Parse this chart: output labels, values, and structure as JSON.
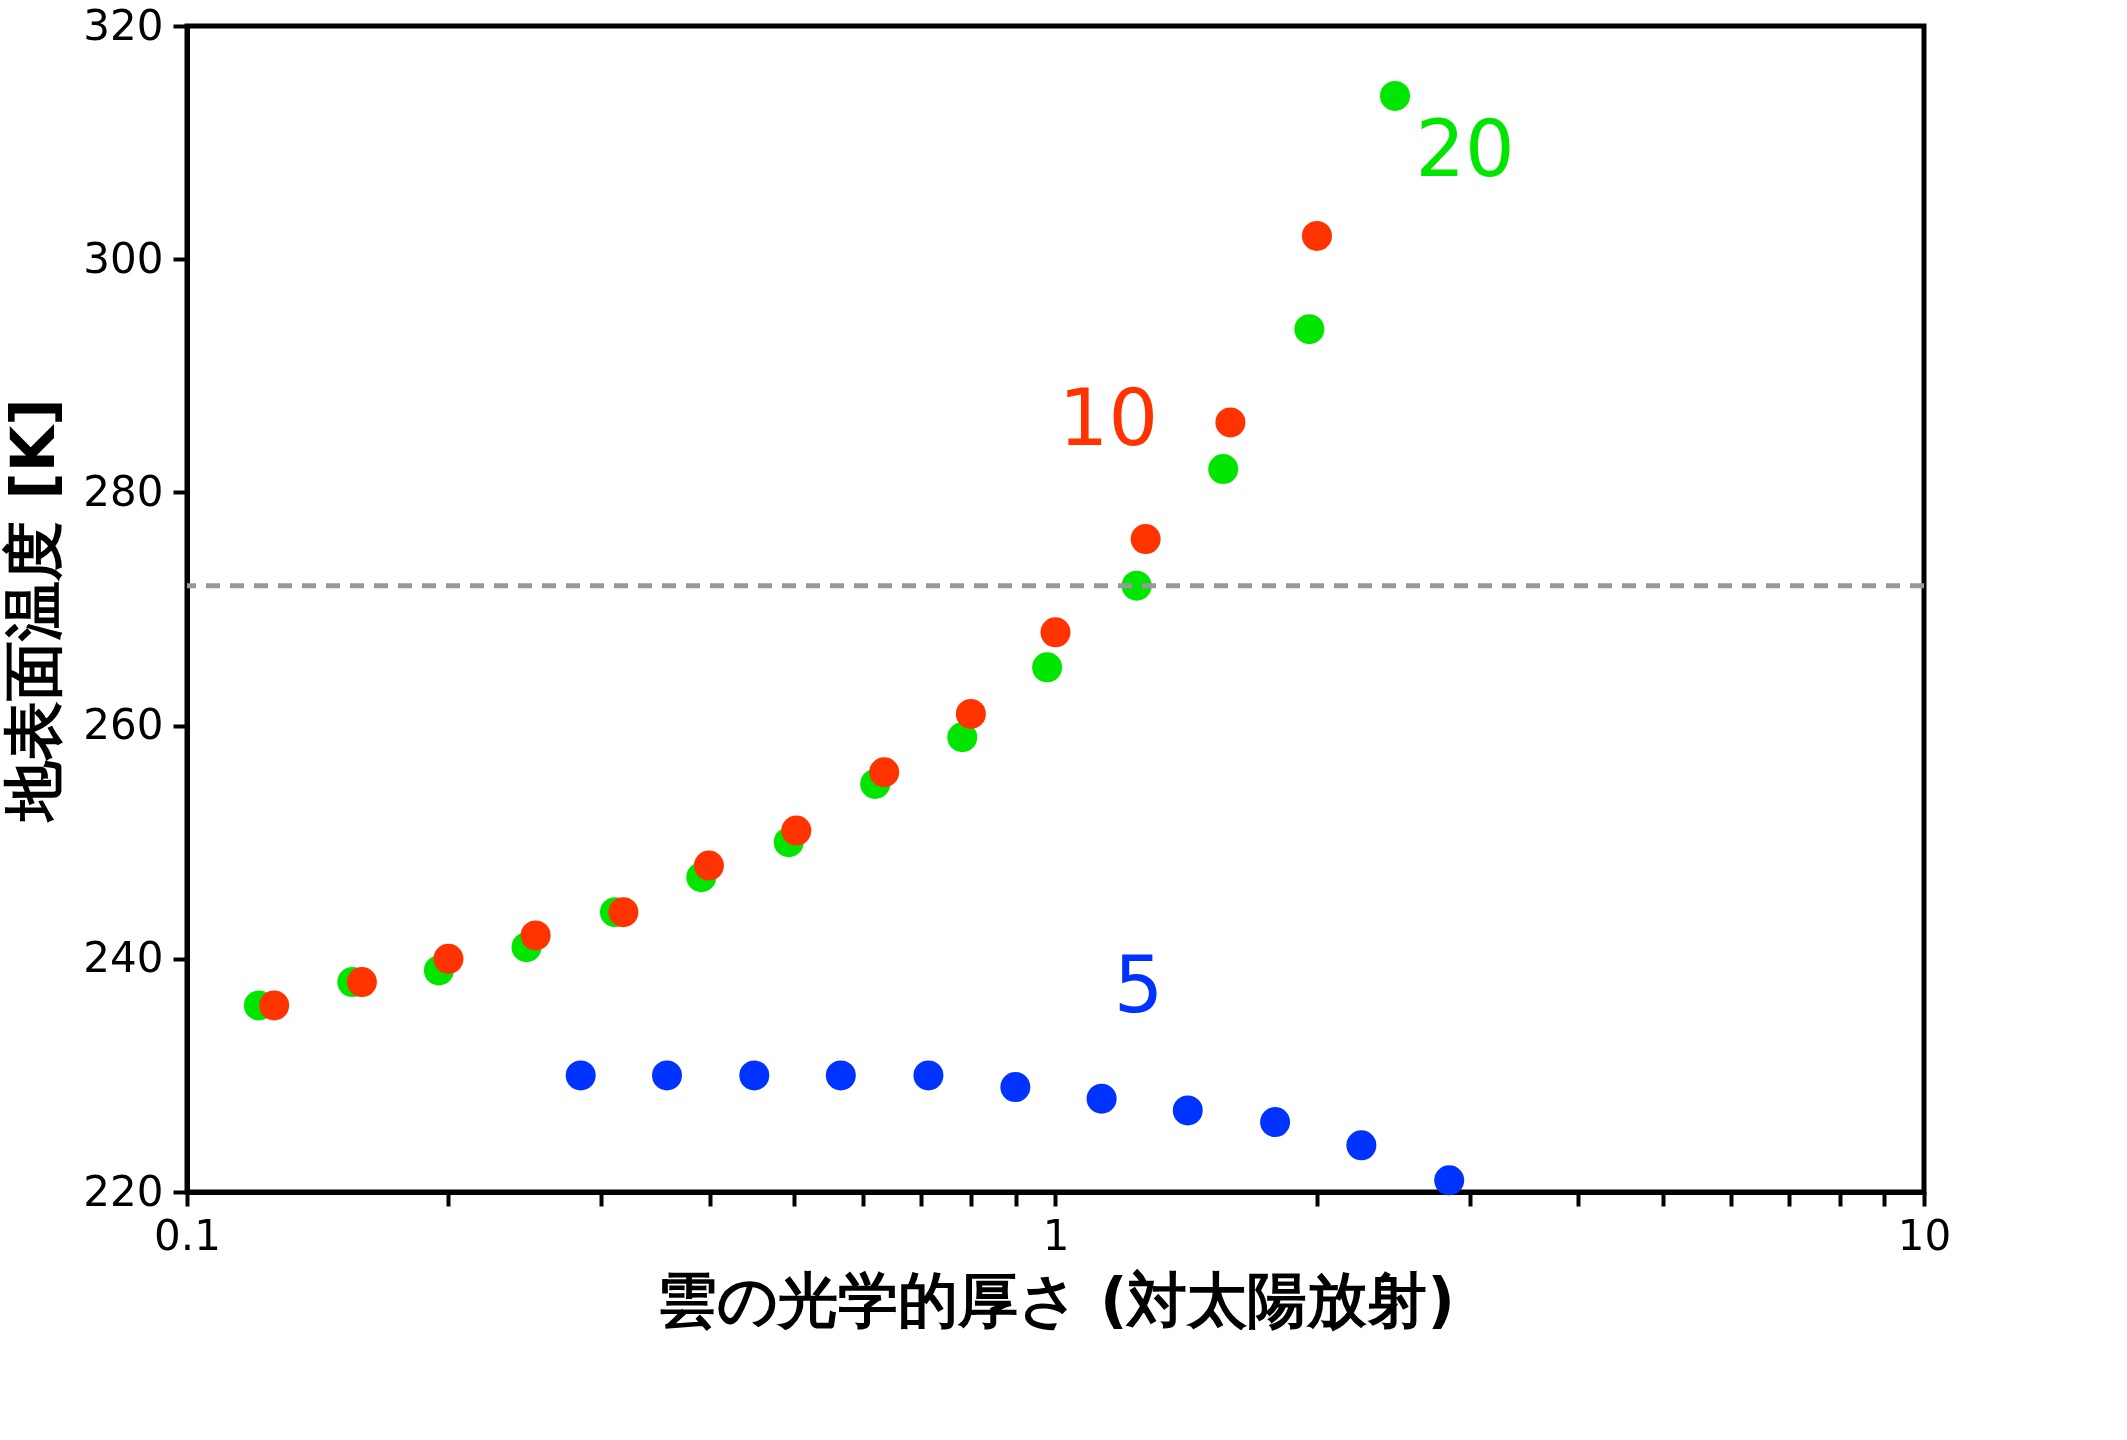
{
  "chart_data": {
    "type": "scatter",
    "xlabel": "雲の光学的厚さ (対太陽放射)",
    "ylabel": "地表面温度 [K]",
    "log": "x",
    "xlim": [
      0.1,
      10
    ],
    "ylim": [
      220,
      320
    ],
    "xticks": [
      {
        "value": 0.1,
        "label": "0.1"
      },
      {
        "value": 0.2,
        "label": null
      },
      {
        "value": 0.3,
        "label": null
      },
      {
        "value": 0.4,
        "label": null
      },
      {
        "value": 0.5,
        "label": null
      },
      {
        "value": 0.6,
        "label": null
      },
      {
        "value": 0.7,
        "label": null
      },
      {
        "value": 0.8,
        "label": null
      },
      {
        "value": 0.9,
        "label": null
      },
      {
        "value": 1,
        "label": "1"
      },
      {
        "value": 2,
        "label": null
      },
      {
        "value": 3,
        "label": null
      },
      {
        "value": 4,
        "label": null
      },
      {
        "value": 5,
        "label": null
      },
      {
        "value": 6,
        "label": null
      },
      {
        "value": 7,
        "label": null
      },
      {
        "value": 8,
        "label": null
      },
      {
        "value": 9,
        "label": null
      },
      {
        "value": 10,
        "label": "10"
      }
    ],
    "yticks": [
      220,
      240,
      260,
      280,
      300,
      320
    ],
    "grid": false,
    "marker": "circle",
    "ref_lines": [
      {
        "axis": "y",
        "value": 272,
        "color": "#999999",
        "line_style": "dashed"
      }
    ],
    "series": [
      {
        "name": "20",
        "color": "#00e600",
        "x": [
          0.121,
          0.155,
          0.195,
          0.246,
          0.311,
          0.391,
          0.493,
          0.62,
          0.781,
          0.978,
          1.24,
          1.56,
          1.96,
          2.46
        ],
        "values": [
          236,
          238,
          239,
          241,
          244,
          247,
          250,
          255,
          259,
          265,
          272,
          282,
          294,
          314
        ]
      },
      {
        "name": "10",
        "color": "#ff3300",
        "x": [
          0.126,
          0.159,
          0.2,
          0.252,
          0.318,
          0.399,
          0.503,
          0.635,
          0.799,
          1.0,
          1.27,
          1.59,
          2.0
        ],
        "values": [
          236,
          238,
          240,
          242,
          244,
          248,
          251,
          256,
          261,
          268,
          276,
          286,
          302
        ]
      },
      {
        "name": "5",
        "color": "#0033ff",
        "x": [
          0.284,
          0.357,
          0.45,
          0.566,
          0.714,
          0.899,
          1.13,
          1.42,
          1.79,
          2.25,
          2.84
        ],
        "values": [
          230,
          230,
          230,
          230,
          230,
          229,
          228,
          227,
          226,
          224,
          221
        ]
      }
    ]
  }
}
